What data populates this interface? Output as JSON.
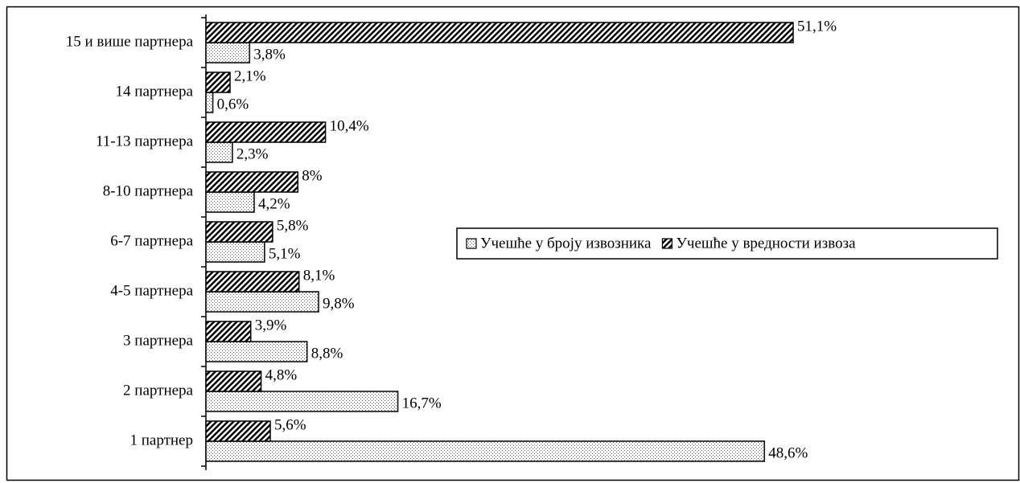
{
  "chart_data": {
    "type": "hbar",
    "categories": [
      "1 партнер",
      "2 партнера",
      "3 партнера",
      "4-5 партнера",
      "6-7 партнера",
      "8-10 партнера",
      "11-13 партнера",
      "14 партнера",
      "15 и више партнера"
    ],
    "series": [
      {
        "name": "Учешће у броју извозника",
        "pattern": "dots",
        "values": [
          48.6,
          16.7,
          8.8,
          9.8,
          5.1,
          4.2,
          2.3,
          0.6,
          3.8
        ],
        "value_labels": [
          "48,6%",
          "16,7%",
          "8,8%",
          "9,8%",
          "5,1%",
          "4,2%",
          "2,3%",
          "0,6%",
          "3,8%"
        ]
      },
      {
        "name": "Учешће у вредности извоза",
        "pattern": "hatch",
        "values": [
          5.6,
          4.8,
          3.9,
          8.1,
          5.8,
          8,
          10.4,
          2.1,
          51.1
        ],
        "value_labels": [
          "5,6%",
          "4,8%",
          "3,9%",
          "8,1%",
          "5,8%",
          "8%",
          "10,4%",
          "2,1%",
          "51,1%"
        ]
      }
    ],
    "xlim": [
      0,
      70
    ],
    "legend": "right"
  }
}
